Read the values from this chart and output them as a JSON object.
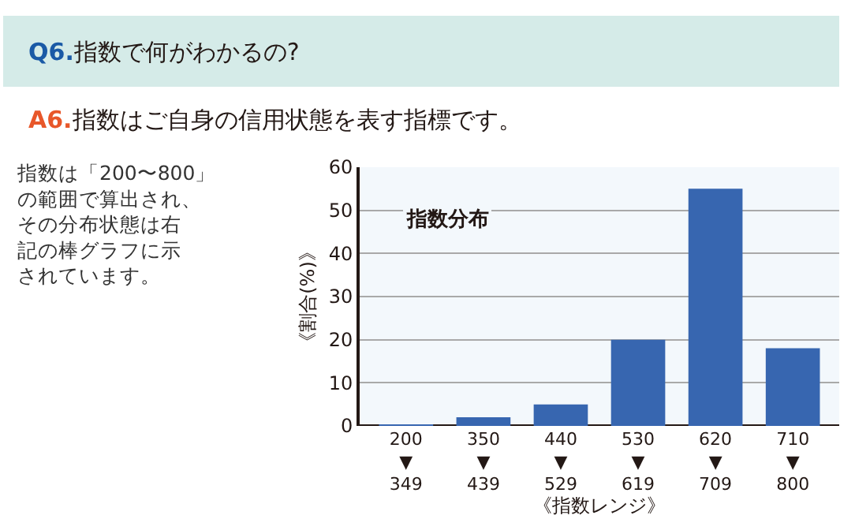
{
  "chart_data": {
    "type": "bar",
    "title": "Q6.指数で何がわかるの?",
    "subtitle": "A6.指数はご自身の信用状態を表す指標です。",
    "xlabel": "《指数レンジ》",
    "ylabel": "《割合(%)》",
    "annotations": [
      "指数は「200〜800」の範囲で算出され、その分布状態は右記の棒グラフに示されています。",
      "指数分布"
    ],
    "categories": [
      "200\n▼\n349",
      "350\n▼\n439",
      "440\n▼\n529",
      "530\n▼\n619",
      "620\n▼\n709",
      "710\n▼\n800"
    ],
    "values": [
      0.2,
      2,
      5,
      20,
      55,
      18
    ],
    "color": "#3766b0",
    "ylim": [
      0,
      60
    ],
    "yticks": [
      0,
      10,
      20,
      30,
      40,
      50,
      60
    ],
    "grid": "y"
  }
}
